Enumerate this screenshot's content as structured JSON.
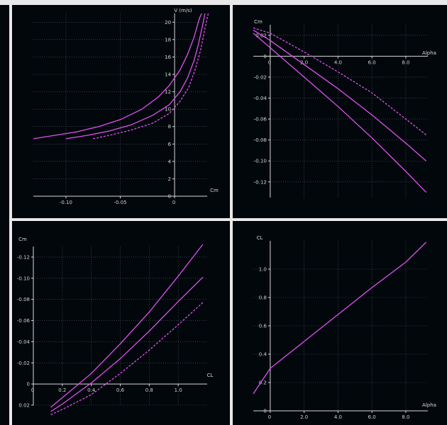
{
  "colors": {
    "background": "#02070c",
    "curve": "#e050ef",
    "axis": "#d8d8d8",
    "separator": "#e8e8e8"
  },
  "chart_data": [
    {
      "id": "v-cm",
      "type": "line",
      "xlabel": "Cm",
      "ylabel": "V (m/s)",
      "xlim": [
        -0.13,
        0.03
      ],
      "ylim": [
        0,
        21
      ],
      "xticks": [
        -0.1,
        -0.05,
        0
      ],
      "xtick_labels": [
        "-0.10",
        "-0.05",
        "0"
      ],
      "yticks": [
        0,
        2,
        4,
        6,
        8,
        10,
        12,
        14,
        16,
        18,
        20
      ],
      "ytick_labels": [
        "0",
        "2",
        "4",
        "6",
        "8",
        "10",
        "12",
        "14",
        "16",
        "18",
        "20"
      ],
      "grid": true,
      "series": [
        {
          "style": "solid",
          "x": [
            -0.13,
            -0.11,
            -0.09,
            -0.07,
            -0.05,
            -0.03,
            -0.015,
            -0.005,
            0.005,
            0.012,
            0.018,
            0.023,
            0.025
          ],
          "y": [
            6.6,
            7.0,
            7.4,
            8.0,
            8.8,
            10.0,
            11.4,
            12.7,
            14.5,
            16.3,
            18.3,
            20.5,
            21.0
          ]
        },
        {
          "style": "solid",
          "x": [
            -0.1,
            -0.08,
            -0.06,
            -0.04,
            -0.02,
            -0.005,
            0.005,
            0.012,
            0.018,
            0.022,
            0.026,
            0.028
          ],
          "y": [
            6.6,
            7.0,
            7.5,
            8.2,
            9.3,
            10.5,
            12.0,
            13.6,
            15.6,
            17.5,
            19.8,
            21.0
          ]
        },
        {
          "style": "dashed",
          "x": [
            -0.075,
            -0.06,
            -0.04,
            -0.02,
            -0.005,
            0.005,
            0.013,
            0.019,
            0.024,
            0.028,
            0.031
          ],
          "y": [
            6.6,
            7.0,
            7.6,
            8.4,
            9.5,
            10.9,
            12.5,
            14.6,
            16.8,
            19.3,
            21.0
          ]
        }
      ]
    },
    {
      "id": "cm-alpha",
      "type": "line",
      "xlabel": "Alpha",
      "ylabel": "Cm",
      "xlim": [
        -1.0,
        9.3
      ],
      "ylim": [
        -0.135,
        0.03
      ],
      "xticks": [
        0,
        2,
        4,
        6,
        8
      ],
      "xtick_labels": [
        "0",
        "2.0",
        "4.0",
        "6.0",
        "8.0"
      ],
      "yticks": [
        0.02,
        0,
        -0.02,
        -0.04,
        -0.06,
        -0.08,
        -0.1,
        -0.12
      ],
      "ytick_labels": [
        "0.02",
        "0",
        "-0.02",
        "-0.04",
        "-0.06",
        "-0.08",
        "-0.10",
        "-0.12"
      ],
      "grid": true,
      "series": [
        {
          "style": "solid",
          "x": [
            -1.0,
            0,
            2,
            4,
            6,
            8,
            9.2
          ],
          "y": [
            0.022,
            0.008,
            -0.02,
            -0.048,
            -0.078,
            -0.11,
            -0.13
          ]
        },
        {
          "style": "solid",
          "x": [
            -1.0,
            0,
            2,
            4,
            6,
            8,
            9.2
          ],
          "y": [
            0.025,
            0.015,
            -0.008,
            -0.031,
            -0.056,
            -0.083,
            -0.1
          ]
        },
        {
          "style": "dashed",
          "x": [
            -1.0,
            0,
            2,
            4,
            6,
            8,
            9.2
          ],
          "y": [
            0.027,
            0.022,
            0.004,
            -0.015,
            -0.035,
            -0.06,
            -0.075
          ]
        }
      ]
    },
    {
      "id": "cm-cl",
      "type": "line",
      "xlabel": "CL",
      "ylabel": "Cm",
      "xlim": [
        0,
        1.2
      ],
      "ylim": [
        -0.13,
        0.02
      ],
      "y_inverted": true,
      "xticks": [
        0,
        0.2,
        0.4,
        0.6,
        0.8,
        1.0
      ],
      "xtick_labels": [
        "0",
        "0.2",
        "0.4",
        "0.6",
        "0.8",
        "1.0"
      ],
      "yticks": [
        -0.12,
        -0.1,
        -0.08,
        -0.06,
        -0.04,
        -0.02,
        0,
        0.02
      ],
      "ytick_labels": [
        "-0.12",
        "-0.10",
        "-0.08",
        "-0.06",
        "-0.04",
        "-0.02",
        "0",
        "0.02"
      ],
      "grid": true,
      "series": [
        {
          "style": "solid",
          "x": [
            0.12,
            0.2,
            0.4,
            0.6,
            0.8,
            1.0,
            1.17
          ],
          "y": [
            0.022,
            0.013,
            -0.01,
            -0.038,
            -0.068,
            -0.102,
            -0.132
          ]
        },
        {
          "style": "solid",
          "x": [
            0.12,
            0.2,
            0.4,
            0.6,
            0.8,
            1.0,
            1.17
          ],
          "y": [
            0.026,
            0.019,
            -0.001,
            -0.024,
            -0.05,
            -0.078,
            -0.101
          ]
        },
        {
          "style": "dashed",
          "x": [
            0.12,
            0.2,
            0.4,
            0.6,
            0.8,
            1.0,
            1.17
          ],
          "y": [
            0.029,
            0.024,
            0.01,
            -0.01,
            -0.032,
            -0.056,
            -0.077
          ]
        }
      ]
    },
    {
      "id": "cl-alpha",
      "type": "line",
      "xlabel": "Alpha",
      "ylabel": "CL",
      "xlim": [
        -1.0,
        9.3
      ],
      "ylim": [
        0,
        1.2
      ],
      "xticks": [
        0,
        2,
        4,
        6,
        8
      ],
      "xtick_labels": [
        "0",
        "2.0",
        "4.0",
        "6.0",
        "8.0"
      ],
      "yticks": [
        0,
        0.2,
        0.4,
        0.6,
        0.8,
        1.0
      ],
      "ytick_labels": [
        "0",
        "0.2",
        "0.4",
        "0.6",
        "0.8",
        "1.0"
      ],
      "grid": true,
      "series": [
        {
          "style": "solid",
          "x": [
            -1.0,
            0,
            2,
            4,
            6,
            8,
            9.2
          ],
          "y": [
            0.12,
            0.3,
            0.49,
            0.68,
            0.87,
            1.05,
            1.19
          ]
        }
      ]
    }
  ]
}
